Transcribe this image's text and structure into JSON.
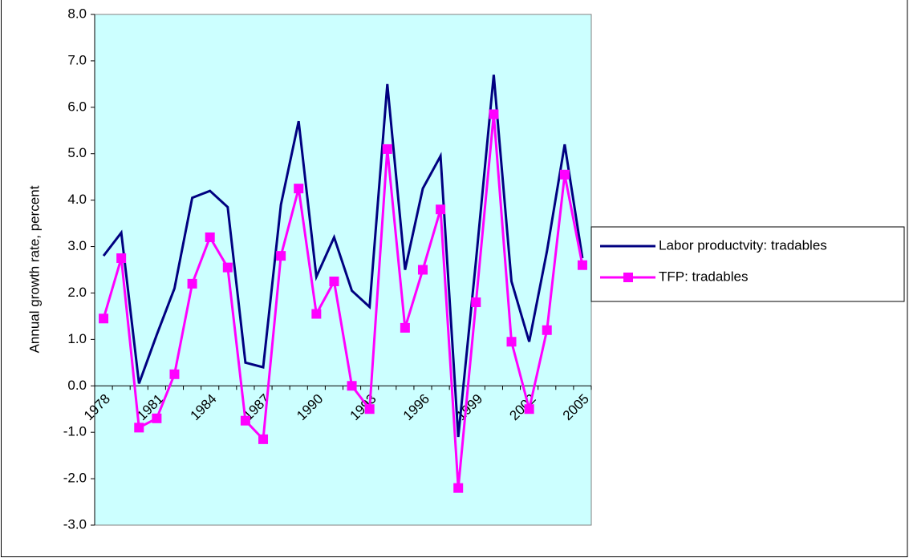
{
  "chart_data": {
    "type": "line",
    "y_label": "Annual growth rate, percent",
    "categories": [
      "1978",
      null,
      null,
      "1981",
      null,
      null,
      "1984",
      null,
      null,
      "1987",
      null,
      null,
      "1990",
      null,
      null,
      "1993",
      null,
      null,
      "1996",
      null,
      null,
      "1999",
      null,
      null,
      "2002",
      null,
      null,
      "2005"
    ],
    "series": [
      {
        "name": "Labor productvity: tradables",
        "color": "#000080",
        "marker": false,
        "values": [
          2.8,
          3.3,
          0.05,
          1.1,
          2.1,
          4.05,
          4.2,
          3.85,
          0.5,
          0.4,
          3.9,
          5.7,
          2.35,
          3.2,
          2.05,
          1.7,
          6.5,
          2.5,
          4.25,
          4.95,
          -1.1,
          2.7,
          6.7,
          2.25,
          0.95,
          2.9,
          5.2,
          2.75
        ]
      },
      {
        "name": "TFP: tradables",
        "color": "#ff00ff",
        "marker": true,
        "values": [
          1.45,
          2.75,
          -0.9,
          -0.7,
          0.25,
          2.2,
          3.2,
          2.55,
          -0.75,
          -1.15,
          2.8,
          4.25,
          1.55,
          2.25,
          0.0,
          -0.5,
          5.1,
          1.25,
          2.5,
          3.8,
          -2.2,
          1.8,
          5.85,
          0.95,
          -0.5,
          1.2,
          4.55,
          2.6
        ]
      }
    ],
    "ylim": [
      -3,
      8
    ],
    "yticks": [
      {
        "value": -3,
        "label": "-3.0"
      },
      {
        "value": -2,
        "label": "-2.0"
      },
      {
        "value": -1,
        "label": "-1.0"
      },
      {
        "value": 0,
        "label": "0.0"
      },
      {
        "value": 1,
        "label": "1.0"
      },
      {
        "value": 2,
        "label": "2.0"
      },
      {
        "value": 3,
        "label": "3.0"
      },
      {
        "value": 4,
        "label": "4.0"
      },
      {
        "value": 5,
        "label": "5.0"
      },
      {
        "value": 6,
        "label": "6.0"
      },
      {
        "value": 7,
        "label": "7.0"
      },
      {
        "value": 8,
        "label": "8.0"
      }
    ],
    "plot_background": "#ccffff",
    "legend": "right"
  }
}
